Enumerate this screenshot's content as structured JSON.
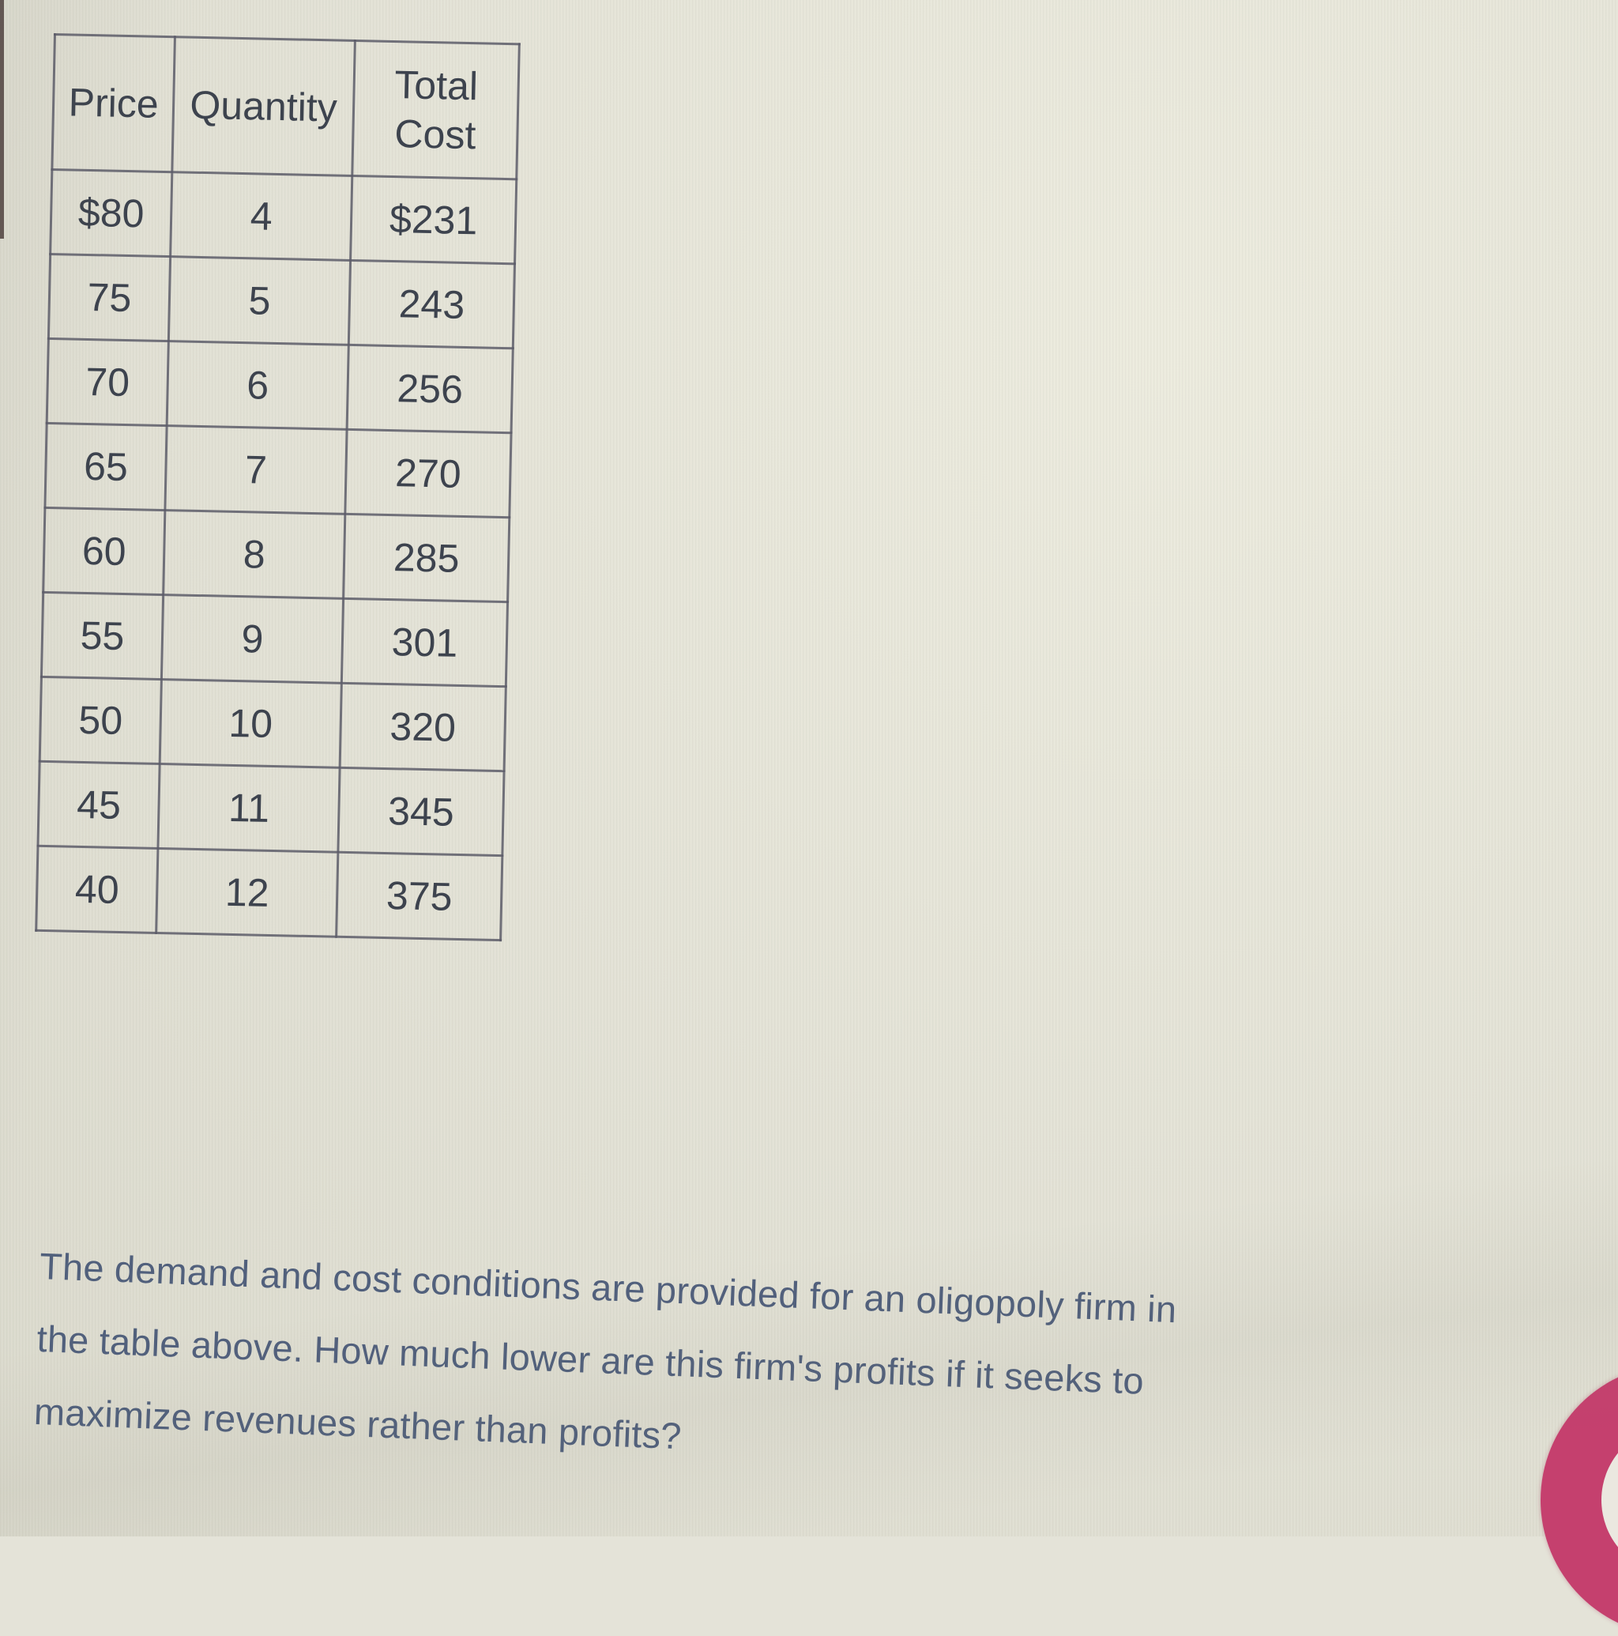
{
  "table": {
    "headers": [
      "Price",
      "Quantity",
      "Total Cost"
    ],
    "rows": [
      [
        "$80",
        "4",
        "$231"
      ],
      [
        "75",
        "5",
        "243"
      ],
      [
        "70",
        "6",
        "256"
      ],
      [
        "65",
        "7",
        "270"
      ],
      [
        "60",
        "8",
        "285"
      ],
      [
        "55",
        "9",
        "301"
      ],
      [
        "50",
        "10",
        "320"
      ],
      [
        "45",
        "11",
        "345"
      ],
      [
        "40",
        "12",
        "375"
      ]
    ]
  },
  "question": {
    "full_text": "The demand and cost conditions are provided for an oligopoly firm in the table above. How much lower are this firm's profits if it seeks to maximize revenues rather than profits?",
    "lines": [
      "The demand and cost conditions are provided for an oligopoly firm in",
      "the table above. How much lower are this firm's profits if it seeks to",
      "maximize revenues rather than profits?"
    ]
  },
  "help_button": {
    "glyph": "?"
  },
  "colors": {
    "background": "#e4e3d8",
    "table_border": "#5c5c68",
    "table_text": "#3d434e",
    "question_text": "#51607c",
    "accent_pink": "#c5406e"
  }
}
